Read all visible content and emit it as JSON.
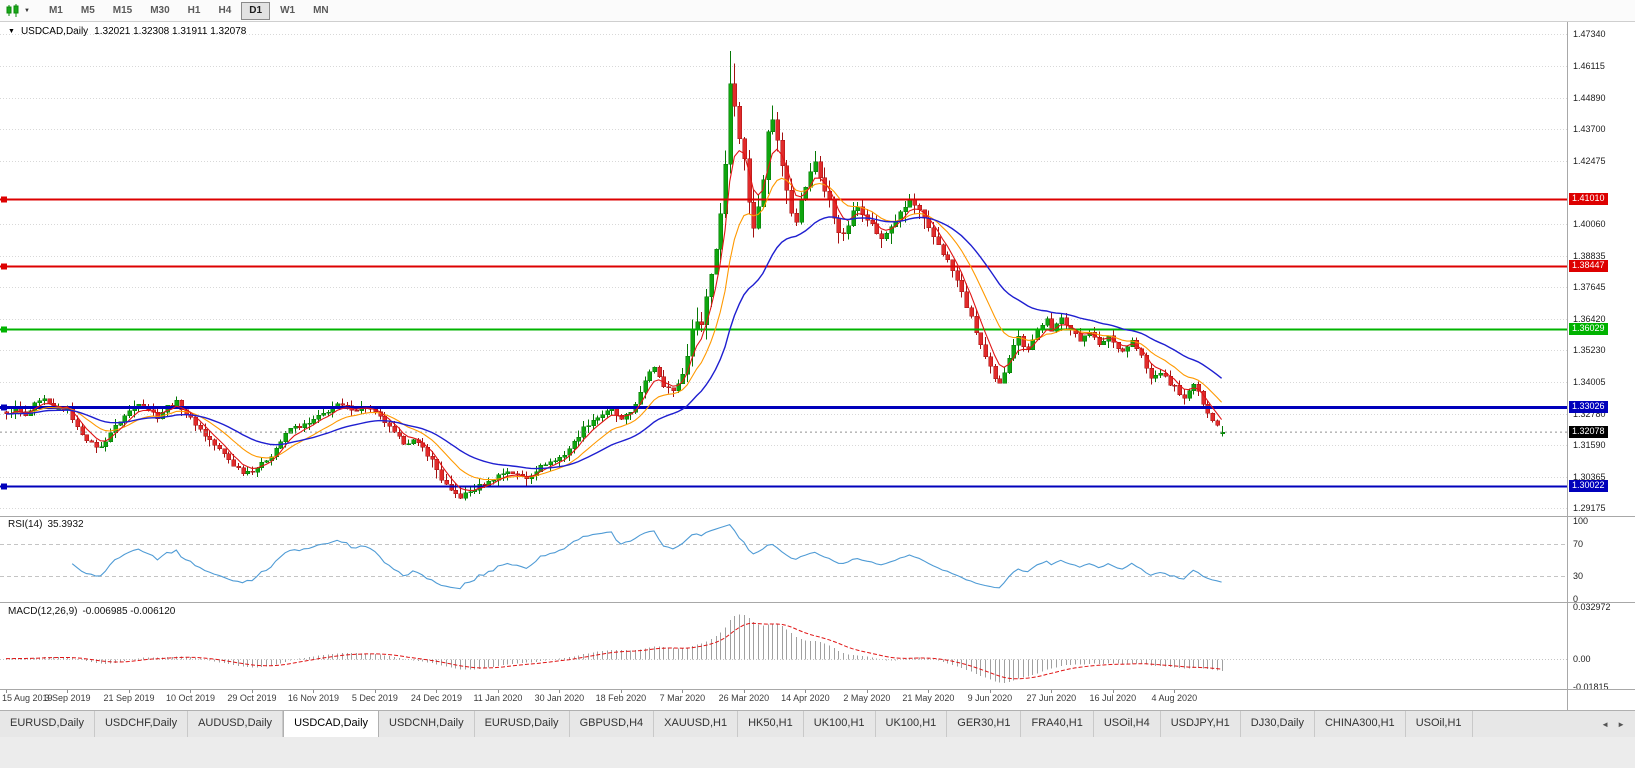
{
  "toolbar": {
    "timeframes": [
      "M1",
      "M5",
      "M15",
      "M30",
      "H1",
      "H4",
      "D1",
      "W1",
      "MN"
    ],
    "active_timeframe": "D1"
  },
  "icons": {
    "symbol_marker": "▼",
    "chart_type_dropdown": "▼",
    "tab_scroll_left": "◄",
    "tab_scroll_right": "►"
  },
  "chart": {
    "symbol_label": "USDCAD,Daily",
    "ohlc_label": "1.32021 1.32308 1.31911 1.32078"
  },
  "chart_data": {
    "type": "candlestick",
    "symbol": "USDCAD",
    "timeframe": "Daily",
    "bar_count": 258,
    "bars_per_label": 13,
    "last_bar": {
      "open": 1.32021,
      "high": 1.32308,
      "low": 1.31911,
      "close": 1.32078
    },
    "visible_high": 1.4669,
    "visible_low": 1.2952,
    "price_range": [
      1.2886,
      1.478
    ],
    "price_axis_ticks": [
      "1.47340",
      "1.46115",
      "1.44890",
      "1.43700",
      "1.42475",
      "1.40060",
      "1.38835",
      "1.37645",
      "1.36420",
      "1.35230",
      "1.34005",
      "1.32780",
      "1.31590",
      "1.30365",
      "1.29175"
    ],
    "date_labels": [
      "15 Aug 2019",
      "3 Sep 2019",
      "21 Sep 2019",
      "10 Oct 2019",
      "29 Oct 2019",
      "16 Nov 2019",
      "5 Dec 2019",
      "24 Dec 2019",
      "11 Jan 2020",
      "30 Jan 2020",
      "18 Feb 2020",
      "7 Mar 2020",
      "26 Mar 2020",
      "14 Apr 2020",
      "2 May 2020",
      "21 May 2020",
      "9 Jun 2020",
      "27 Jun 2020",
      "16 Jul 2020",
      "4 Aug 2020"
    ],
    "levels": [
      {
        "label": "1.41010",
        "price": 1.4101,
        "color": "#dd0000",
        "width": 2
      },
      {
        "label": "1.38447",
        "price": 1.38447,
        "color": "#dd0000",
        "width": 2
      },
      {
        "label": "1.36029",
        "price": 1.36029,
        "color": "#00b300",
        "width": 2
      },
      {
        "label": "1.33026",
        "price": 1.33026,
        "color": "#0000bb",
        "width": 3
      },
      {
        "label": "1.30022",
        "price": 1.30022,
        "color": "#0000bb",
        "width": 2
      }
    ],
    "current_price": {
      "label": "1.32078",
      "price": 1.32078
    },
    "candle_colors": {
      "up": "#0fa50f",
      "up_stroke": "#067806",
      "down": "#e12b2b",
      "down_stroke": "#a31212"
    },
    "overlays": [
      {
        "name": "ma-mid",
        "period": 13,
        "color": "#ff9900",
        "width": 1.1
      },
      {
        "name": "ma-fast",
        "period": 5,
        "color": "#e01515",
        "width": 1.1
      },
      {
        "name": "ma-slow",
        "period": 30,
        "color": "#1f1fd0",
        "width": 1.4
      }
    ],
    "indicators": [
      {
        "name": "RSI",
        "period": 14,
        "current": 35.3932
      },
      {
        "name": "MACD",
        "fast": 12,
        "slow": 26,
        "signal": 9,
        "current": [
          -0.006985,
          -0.00612
        ]
      }
    ],
    "volatility_zones": [
      {
        "from": 90,
        "to": 98,
        "mult": 1.3
      },
      {
        "from": 143,
        "to": 168,
        "mult": 2.4
      },
      {
        "from": 169,
        "to": 194,
        "mult": 1.6
      },
      {
        "from": 195,
        "to": 214,
        "mult": 1.5
      }
    ],
    "candle_overrides": {
      "96": {
        "l": 1.2952
      },
      "153": {
        "h": 1.4669
      },
      "154": {
        "h": 1.462
      },
      "257": {
        "o": 1.32021,
        "h": 1.32308,
        "l": 1.31911,
        "c": 1.32078
      }
    },
    "close_path": [
      [
        0,
        1.3272
      ],
      [
        2,
        1.33
      ],
      [
        4,
        1.3266
      ],
      [
        6,
        1.3312
      ],
      [
        8,
        1.333
      ],
      [
        10,
        1.3294
      ],
      [
        13,
        1.33
      ],
      [
        15,
        1.3222
      ],
      [
        18,
        1.3162
      ],
      [
        20,
        1.3148
      ],
      [
        22,
        1.3206
      ],
      [
        24,
        1.3252
      ],
      [
        26,
        1.3288
      ],
      [
        28,
        1.3322
      ],
      [
        30,
        1.3296
      ],
      [
        32,
        1.3266
      ],
      [
        34,
        1.3306
      ],
      [
        36,
        1.3322
      ],
      [
        38,
        1.3278
      ],
      [
        40,
        1.324
      ],
      [
        42,
        1.3196
      ],
      [
        44,
        1.3158
      ],
      [
        46,
        1.3122
      ],
      [
        48,
        1.3082
      ],
      [
        50,
        1.3055
      ],
      [
        52,
        1.3062
      ],
      [
        54,
        1.3085
      ],
      [
        56,
        1.312
      ],
      [
        58,
        1.3172
      ],
      [
        60,
        1.3222
      ],
      [
        62,
        1.323
      ],
      [
        64,
        1.324
      ],
      [
        66,
        1.3266
      ],
      [
        68,
        1.329
      ],
      [
        70,
        1.331
      ],
      [
        72,
        1.3302
      ],
      [
        74,
        1.3296
      ],
      [
        76,
        1.3306
      ],
      [
        78,
        1.328
      ],
      [
        80,
        1.3246
      ],
      [
        82,
        1.32
      ],
      [
        84,
        1.3168
      ],
      [
        86,
        1.3174
      ],
      [
        88,
        1.3146
      ],
      [
        90,
        1.3098
      ],
      [
        92,
        1.3028
      ],
      [
        94,
        1.2976
      ],
      [
        96,
        1.296
      ],
      [
        98,
        1.2978
      ],
      [
        100,
        1.3002
      ],
      [
        102,
        1.3016
      ],
      [
        104,
        1.3042
      ],
      [
        106,
        1.3058
      ],
      [
        108,
        1.3042
      ],
      [
        110,
        1.3032
      ],
      [
        112,
        1.3062
      ],
      [
        114,
        1.3088
      ],
      [
        116,
        1.3098
      ],
      [
        118,
        1.3122
      ],
      [
        120,
        1.3168
      ],
      [
        122,
        1.3222
      ],
      [
        124,
        1.3255
      ],
      [
        126,
        1.3276
      ],
      [
        128,
        1.3292
      ],
      [
        130,
        1.3252
      ],
      [
        132,
        1.3285
      ],
      [
        134,
        1.3355
      ],
      [
        136,
        1.3442
      ],
      [
        137,
        1.346
      ],
      [
        139,
        1.339
      ],
      [
        141,
        1.3362
      ],
      [
        143,
        1.3428
      ],
      [
        144,
        1.3512
      ],
      [
        145,
        1.359
      ],
      [
        146,
        1.365
      ],
      [
        147,
        1.3618
      ],
      [
        148,
        1.3728
      ],
      [
        149,
        1.382
      ],
      [
        150,
        1.3915
      ],
      [
        151,
        1.405
      ],
      [
        152,
        1.424
      ],
      [
        153,
        1.456
      ],
      [
        154,
        1.445
      ],
      [
        155,
        1.434
      ],
      [
        156,
        1.4262
      ],
      [
        157,
        1.408
      ],
      [
        158,
        1.3992
      ],
      [
        159,
        1.409
      ],
      [
        160,
        1.419
      ],
      [
        161,
        1.435
      ],
      [
        162,
        1.4415
      ],
      [
        163,
        1.4322
      ],
      [
        164,
        1.4232
      ],
      [
        165,
        1.415
      ],
      [
        166,
        1.4062
      ],
      [
        167,
        1.4028
      ],
      [
        168,
        1.409
      ],
      [
        169,
        1.415
      ],
      [
        170,
        1.42
      ],
      [
        171,
        1.4245
      ],
      [
        172,
        1.4188
      ],
      [
        173,
        1.4132
      ],
      [
        174,
        1.409
      ],
      [
        175,
        1.4032
      ],
      [
        176,
        1.3982
      ],
      [
        177,
        1.3958
      ],
      [
        178,
        1.4002
      ],
      [
        179,
        1.4048
      ],
      [
        180,
        1.4072
      ],
      [
        182,
        1.4032
      ],
      [
        184,
        1.3972
      ],
      [
        185,
        1.3942
      ],
      [
        187,
        1.3998
      ],
      [
        189,
        1.4042
      ],
      [
        191,
        1.4098
      ],
      [
        193,
        1.4052
      ],
      [
        195,
        1.3982
      ],
      [
        197,
        1.3928
      ],
      [
        199,
        1.3862
      ],
      [
        201,
        1.3788
      ],
      [
        203,
        1.3692
      ],
      [
        205,
        1.3592
      ],
      [
        207,
        1.3492
      ],
      [
        209,
        1.3405
      ],
      [
        210,
        1.3388
      ],
      [
        211,
        1.3442
      ],
      [
        212,
        1.3502
      ],
      [
        213,
        1.3548
      ],
      [
        214,
        1.3568
      ],
      [
        215,
        1.3542
      ],
      [
        216,
        1.3528
      ],
      [
        217,
        1.3562
      ],
      [
        218,
        1.3598
      ],
      [
        219,
        1.3622
      ],
      [
        220,
        1.3638
      ],
      [
        221,
        1.3588
      ],
      [
        223,
        1.3652
      ],
      [
        225,
        1.3598
      ],
      [
        227,
        1.3558
      ],
      [
        228,
        1.3582
      ],
      [
        229,
        1.3596
      ],
      [
        231,
        1.3538
      ],
      [
        233,
        1.3578
      ],
      [
        234,
        1.3552
      ],
      [
        236,
        1.3518
      ],
      [
        238,
        1.3558
      ],
      [
        240,
        1.3498
      ],
      [
        241,
        1.3452
      ],
      [
        242,
        1.3412
      ],
      [
        244,
        1.3438
      ],
      [
        246,
        1.3392
      ],
      [
        247,
        1.3382
      ],
      [
        249,
        1.3332
      ],
      [
        251,
        1.3392
      ],
      [
        253,
        1.3322
      ],
      [
        255,
        1.3252
      ],
      [
        256,
        1.3232
      ],
      [
        257,
        1.32078
      ]
    ]
  },
  "rsi_panel": {
    "name": "RSI(14)",
    "value": "35.3932",
    "line_color": "#4f9bd5",
    "guides": [
      70,
      30
    ],
    "axis": [
      {
        "label": "100",
        "value": 100
      },
      {
        "label": "70",
        "value": 70
      },
      {
        "label": "30",
        "value": 30
      },
      {
        "label": "0",
        "value": 0
      }
    ]
  },
  "macd_panel": {
    "name": "MACD(12,26,9)",
    "values": "-0.006985 -0.006120",
    "histogram_color": "#a0a0a0",
    "signal_color": "#e01515",
    "range": [
      -0.01815,
      0.033
    ],
    "axis": [
      {
        "label": "0.032972",
        "value": 0.032972
      },
      {
        "label": "0.00",
        "value": 0
      },
      {
        "label": "-0.01815",
        "value": -0.01815
      }
    ]
  },
  "tabs": {
    "active_index": 3,
    "items": [
      "EURUSD,Daily",
      "USDCHF,Daily",
      "AUDUSD,Daily",
      "USDCAD,Daily",
      "USDCNH,Daily",
      "EURUSD,Daily",
      "GBPUSD,H4",
      "XAUUSD,H1",
      "HK50,H1",
      "UK100,H1",
      "UK100,H1",
      "GER30,H1",
      "FRA40,H1",
      "USOil,H4",
      "USDJPY,H1",
      "DJ30,Daily",
      "CHINA300,H1",
      "USOil,H1"
    ]
  }
}
